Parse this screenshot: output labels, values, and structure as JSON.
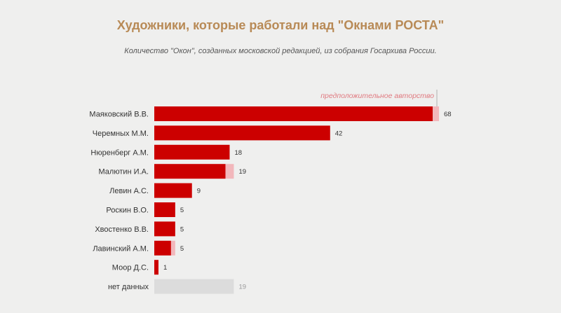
{
  "title": "Художники, которые работали над \"Окнами РОСТА\"",
  "subtitle": "Количество \"Окон\", созданных московской редакцией, из собрания Госархива России.",
  "colors": {
    "confirmed": "#cc0000",
    "presumed": "#f2b7bb",
    "nodata": "#dcdcdc"
  },
  "chart_data": {
    "type": "bar",
    "orientation": "horizontal",
    "stacked": true,
    "annotation": "предположительное авторство",
    "categories": [
      "Маяковский В.В.",
      "Черемных М.М.",
      "Нюренберг А.М.",
      "Малютин И.А.",
      "Левин А.С.",
      "Роскин В.О.",
      "Хвостенко В.В.",
      "Лавинский А.М.",
      "Моор Д.С.",
      "нет данных"
    ],
    "series": [
      {
        "key": "confirmed",
        "values": [
          66.5,
          42,
          18,
          17,
          9,
          5,
          5,
          4,
          1,
          0
        ]
      },
      {
        "key": "presumed",
        "values": [
          1.5,
          0,
          0,
          2,
          0,
          0,
          0,
          1,
          0,
          0
        ]
      },
      {
        "key": "nodata",
        "values": [
          0,
          0,
          0,
          0,
          0,
          0,
          0,
          0,
          0,
          19
        ]
      }
    ],
    "totals": [
      "68",
      "42",
      "18",
      "19",
      "9",
      "5",
      "5",
      "5",
      "1",
      "19"
    ],
    "xlim": [
      0,
      68
    ]
  }
}
